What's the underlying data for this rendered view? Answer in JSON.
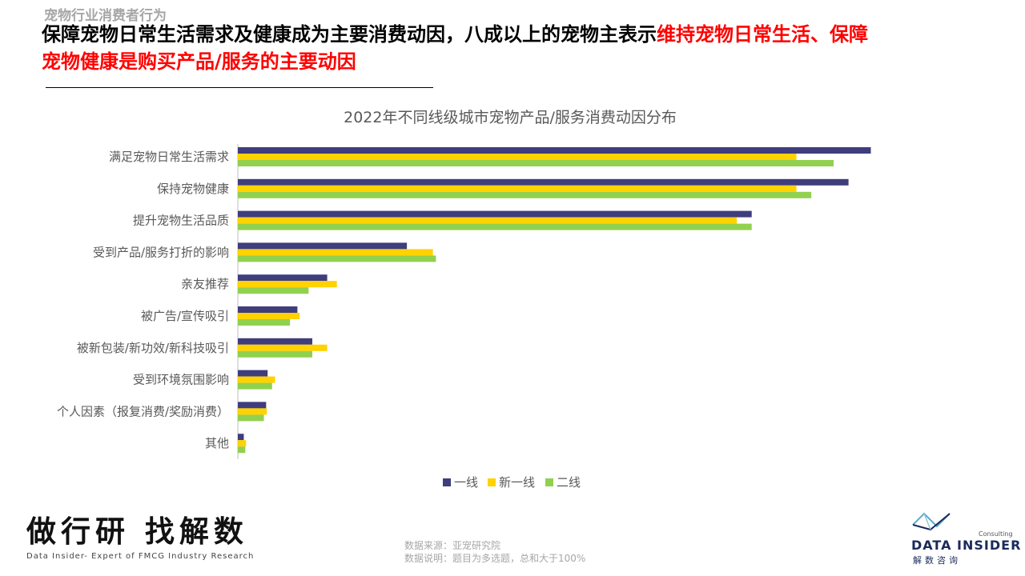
{
  "header": {
    "section": "宠物行业消费者行为",
    "headline_black": "保障宠物日常生活需求及健康成为主要消费动因，八成以上的宠物主表示",
    "headline_red": "维持宠物日常生活、保障宠物健康是购买产品/服务的主要动因"
  },
  "chart_data": {
    "type": "bar",
    "orientation": "horizontal",
    "title": "2022年不同线级城市宠物产品/服务消费动因分布",
    "categories": [
      "满足宠物日常生活需求",
      "保持宠物健康",
      "提升宠物生活品质",
      "受到产品/服务打折的影响",
      "亲友推荐",
      "被广告/宣传吸引",
      "被新包装/新功效/新科技吸引",
      "受到环境氛围影响",
      "个人因素（报复消费/奖励消费）",
      "其他"
    ],
    "series": [
      {
        "name": "一线",
        "color": "#3f3d7c",
        "values": [
          85,
          82,
          69,
          22.7,
          12,
          8,
          10,
          4,
          3.8,
          0.8
        ]
      },
      {
        "name": "新一线",
        "color": "#ffd200",
        "values": [
          75,
          75,
          67,
          26.2,
          13.3,
          8.3,
          12,
          5,
          3.9,
          1.1
        ]
      },
      {
        "name": "二线",
        "color": "#92d050",
        "values": [
          80,
          77,
          69,
          26.6,
          9.5,
          7,
          10,
          4.6,
          3.5,
          1
        ]
      }
    ],
    "legend": "bottom",
    "grid": false
  },
  "footer": {
    "brand": "做行研 找解数",
    "brand_sub": "Data Insider- Expert of FMCG Industry Research",
    "source": "数据来源：亚宠研究院",
    "note": "数据说明：题目为多选题，总和大于100%",
    "logo_name": "DATA INSIDER",
    "logo_cn": "解数咨询",
    "logo_consult": "Consulting"
  }
}
